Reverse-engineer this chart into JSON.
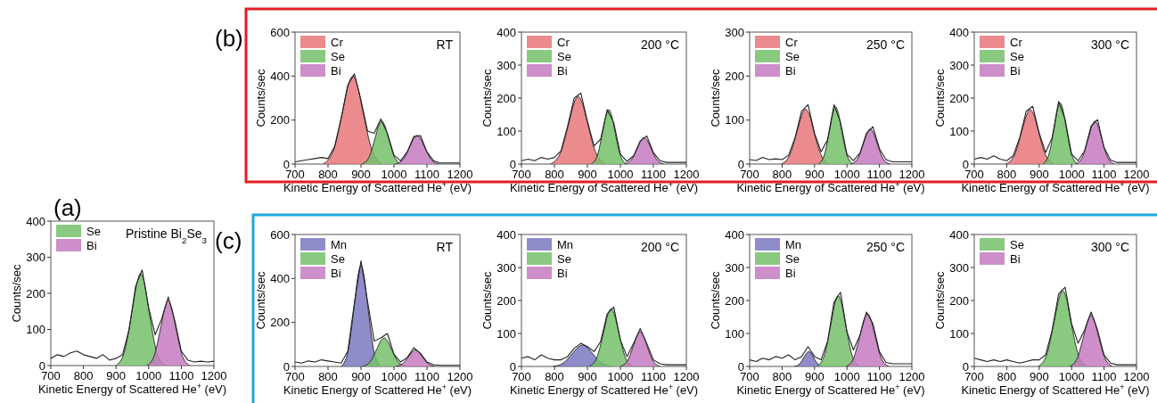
{
  "chart_data": [
    {
      "type": "area",
      "title": "Pristine Bi$_{2}$Se$_{3}$",
      "xlabel": "Kinetic Energy of Scattered He$^{+}$ (eV)",
      "ylabel": "Counts/sec",
      "annotations": [
        "(a)"
      ],
      "xlim": [
        700,
        1200
      ],
      "xticks": [
        700,
        800,
        900,
        1000,
        1100,
        1200
      ],
      "ylim": [
        0,
        400
      ],
      "yticks": [
        0,
        100,
        200,
        300,
        400
      ],
      "legend": "top left",
      "x": [
        700,
        720,
        740,
        760,
        780,
        800,
        820,
        840,
        860,
        880,
        900,
        920,
        940,
        960,
        980,
        1000,
        1020,
        1040,
        1060,
        1080,
        1100,
        1120,
        1140,
        1160,
        1180,
        1200
      ],
      "series": [
        {
          "name": "Se",
          "color": "#74bf6a",
          "x": [
            900,
            925,
            950,
            963,
            975,
            988,
            1000,
            1025,
            1050
          ],
          "values": [
            0,
            36,
            156,
            224,
            255,
            224,
            156,
            36,
            0
          ]
        },
        {
          "name": "Bi",
          "color": "#c47ac0",
          "x": [
            994,
            1016,
            1038,
            1049,
            1060,
            1071,
            1082,
            1104,
            1126
          ],
          "values": [
            0,
            25,
            110,
            158,
            180,
            158,
            110,
            25,
            0
          ]
        },
        {
          "type": "line",
          "color": "#222222",
          "values": [
            20,
            30,
            25,
            35,
            40,
            30,
            25,
            20,
            30,
            15,
            20,
            30,
            100,
            220,
            265,
            160,
            85,
            130,
            190,
            125,
            40,
            15,
            10,
            12,
            10,
            12
          ]
        }
      ]
    },
    {
      "type": "area",
      "title": "RT",
      "xlabel": "Kinetic Energy of Scattered He$^{+}$ (eV)",
      "ylabel": "Counts/sec",
      "annotations": [
        "(b)"
      ],
      "xlim": [
        700,
        1200
      ],
      "xticks": [
        700,
        800,
        900,
        1000,
        1100,
        1200
      ],
      "ylim": [
        0,
        600
      ],
      "yticks": [
        0,
        200,
        400,
        600
      ],
      "legend": "top left",
      "x": [
        700,
        720,
        740,
        760,
        780,
        800,
        820,
        840,
        860,
        880,
        900,
        920,
        940,
        960,
        980,
        1000,
        1020,
        1040,
        1060,
        1080,
        1100,
        1120,
        1140,
        1160,
        1180,
        1200
      ],
      "series": [
        {
          "name": "Cr",
          "color": "#e8777a",
          "x": [
            785,
            815,
            845,
            860,
            875,
            890,
            905,
            935,
            965
          ],
          "values": [
            0,
            56,
            244,
            352,
            400,
            352,
            244,
            56,
            0
          ]
        },
        {
          "name": "Se",
          "color": "#74bf6a",
          "x": [
            903,
            923,
            943,
            953,
            963,
            973,
            983,
            1003,
            1023
          ],
          "values": [
            0,
            27,
            119,
            172,
            195,
            172,
            119,
            27,
            0
          ]
        },
        {
          "name": "Bi",
          "color": "#c47ac0",
          "x": [
            1004,
            1026,
            1048,
            1059,
            1070,
            1081,
            1092,
            1114,
            1136
          ],
          "values": [
            0,
            18,
            79,
            114,
            130,
            114,
            79,
            18,
            0
          ]
        },
        {
          "type": "line",
          "color": "#222222",
          "values": [
            10,
            15,
            20,
            25,
            30,
            25,
            80,
            210,
            360,
            410,
            290,
            150,
            140,
            205,
            140,
            40,
            15,
            55,
            125,
            130,
            55,
            15,
            5,
            5,
            5,
            5
          ]
        }
      ]
    },
    {
      "type": "area",
      "title": "200 °C",
      "xlabel": "Kinetic Energy of Scattered He$^{+}$ (eV)",
      "ylabel": "Counts/sec",
      "xlim": [
        700,
        1200
      ],
      "xticks": [
        700,
        800,
        900,
        1000,
        1100,
        1200
      ],
      "ylim": [
        0,
        400
      ],
      "yticks": [
        0,
        100,
        200,
        300,
        400
      ],
      "legend": "top left",
      "x": [
        700,
        720,
        740,
        760,
        780,
        800,
        820,
        840,
        860,
        880,
        900,
        920,
        940,
        960,
        980,
        1000,
        1020,
        1040,
        1060,
        1080,
        1100,
        1120,
        1140,
        1160,
        1180,
        1200
      ],
      "series": [
        {
          "name": "Cr",
          "color": "#e8777a",
          "x": [
            788,
            816,
            844,
            858,
            872,
            886,
            900,
            928,
            956
          ],
          "values": [
            0,
            29,
            125,
            180,
            205,
            180,
            125,
            29,
            0
          ]
        },
        {
          "name": "Se",
          "color": "#74bf6a",
          "x": [
            911,
            929,
            947,
            956,
            965,
            974,
            983,
            1001,
            1019
          ],
          "values": [
            0,
            23,
            101,
            145,
            165,
            145,
            101,
            23,
            0
          ]
        },
        {
          "name": "Bi",
          "color": "#c47ac0",
          "x": [
            1012,
            1032,
            1052,
            1062,
            1072,
            1082,
            1092,
            1112,
            1132
          ],
          "values": [
            0,
            11,
            49,
            70,
            80,
            70,
            49,
            11,
            0
          ]
        },
        {
          "type": "line",
          "color": "#222222",
          "values": [
            10,
            15,
            10,
            20,
            15,
            20,
            40,
            115,
            200,
            215,
            130,
            55,
            75,
            165,
            125,
            30,
            8,
            25,
            70,
            85,
            35,
            10,
            5,
            5,
            5,
            5
          ]
        }
      ]
    },
    {
      "type": "area",
      "title": "250 °C",
      "xlabel": "Kinetic Energy of Scattered He$^{+}$ (eV)",
      "ylabel": "Counts/sec",
      "xlim": [
        700,
        1200
      ],
      "xticks": [
        700,
        800,
        900,
        1000,
        1100,
        1200
      ],
      "ylim": [
        0,
        300
      ],
      "yticks": [
        0,
        100,
        200,
        300
      ],
      "legend": "top left",
      "x": [
        700,
        720,
        740,
        760,
        780,
        800,
        820,
        840,
        860,
        880,
        900,
        920,
        940,
        960,
        980,
        1000,
        1020,
        1040,
        1060,
        1080,
        1100,
        1120,
        1140,
        1160,
        1180,
        1200
      ],
      "series": [
        {
          "name": "Cr",
          "color": "#e8777a",
          "x": [
            797,
            822,
            847,
            860,
            872,
            885,
            897,
            922,
            947
          ],
          "values": [
            0,
            18,
            76,
            110,
            125,
            110,
            76,
            18,
            0
          ]
        },
        {
          "name": "Se",
          "color": "#74bf6a",
          "x": [
            911,
            929,
            947,
            956,
            965,
            974,
            983,
            1001,
            1019
          ],
          "values": [
            0,
            18,
            79,
            114,
            130,
            114,
            79,
            18,
            0
          ]
        },
        {
          "name": "Bi",
          "color": "#c47ac0",
          "x": [
            1012,
            1032,
            1052,
            1062,
            1072,
            1082,
            1092,
            1112,
            1132
          ],
          "values": [
            0,
            11,
            49,
            70,
            80,
            70,
            49,
            11,
            0
          ]
        },
        {
          "type": "line",
          "color": "#222222",
          "values": [
            10,
            8,
            15,
            10,
            12,
            10,
            20,
            60,
            120,
            135,
            70,
            28,
            55,
            135,
            95,
            22,
            8,
            25,
            70,
            85,
            35,
            10,
            5,
            5,
            5,
            5
          ]
        }
      ]
    },
    {
      "type": "area",
      "title": "300 °C",
      "xlabel": "Kinetic Energy of Scattered He$^{+}$ (eV)",
      "ylabel": "Counts/sec",
      "xlim": [
        700,
        1200
      ],
      "xticks": [
        700,
        800,
        900,
        1000,
        1100,
        1200
      ],
      "ylim": [
        0,
        400
      ],
      "yticks": [
        0,
        100,
        200,
        300,
        400
      ],
      "legend": "top left",
      "x": [
        700,
        720,
        740,
        760,
        780,
        800,
        820,
        840,
        860,
        880,
        900,
        920,
        940,
        960,
        980,
        1000,
        1020,
        1040,
        1060,
        1080,
        1100,
        1120,
        1140,
        1160,
        1180,
        1200
      ],
      "series": [
        {
          "name": "Cr",
          "color": "#e8777a",
          "x": [
            797,
            822,
            847,
            860,
            872,
            885,
            897,
            922,
            947
          ],
          "values": [
            0,
            23,
            101,
            145,
            165,
            145,
            101,
            23,
            0
          ]
        },
        {
          "name": "Se",
          "color": "#74bf6a",
          "x": [
            911,
            929,
            947,
            956,
            965,
            974,
            983,
            1001,
            1019
          ],
          "values": [
            0,
            26,
            113,
            163,
            185,
            163,
            113,
            26,
            0
          ]
        },
        {
          "name": "Bi",
          "color": "#c47ac0",
          "x": [
            1012,
            1032,
            1052,
            1062,
            1072,
            1082,
            1092,
            1112,
            1132
          ],
          "values": [
            0,
            18,
            79,
            114,
            130,
            114,
            79,
            18,
            0
          ]
        },
        {
          "type": "line",
          "color": "#222222",
          "values": [
            15,
            20,
            15,
            25,
            15,
            10,
            25,
            80,
            160,
            175,
            95,
            35,
            80,
            190,
            135,
            30,
            10,
            40,
            115,
            135,
            50,
            12,
            5,
            5,
            5,
            5
          ]
        }
      ]
    },
    {
      "type": "area",
      "title": "RT",
      "xlabel": "Kinetic Energy of Scattered He$^{+}$ (eV)",
      "ylabel": "Counts/sec",
      "annotations": [
        "(c)"
      ],
      "xlim": [
        700,
        1200
      ],
      "xticks": [
        700,
        800,
        900,
        1000,
        1100,
        1200
      ],
      "ylim": [
        0,
        600
      ],
      "yticks": [
        0,
        200,
        400,
        600
      ],
      "legend": "top left",
      "x": [
        700,
        720,
        740,
        760,
        780,
        800,
        820,
        840,
        860,
        880,
        900,
        920,
        940,
        960,
        980,
        1000,
        1020,
        1040,
        1060,
        1080,
        1100,
        1120,
        1140,
        1160,
        1180,
        1200
      ],
      "series": [
        {
          "name": "Mn",
          "color": "#7a78c0",
          "x": [
            840,
            860,
            880,
            890,
            900,
            910,
            920,
            940,
            960
          ],
          "values": [
            0,
            64,
            281,
            405,
            460,
            405,
            281,
            64,
            0
          ]
        },
        {
          "name": "Se",
          "color": "#74bf6a",
          "x": [
            904,
            926,
            948,
            959,
            970,
            981,
            992,
            1014,
            1036
          ],
          "values": [
            0,
            18,
            79,
            114,
            130,
            114,
            79,
            18,
            0
          ]
        },
        {
          "name": "Bi",
          "color": "#c47ac0",
          "x": [
            1005,
            1025,
            1045,
            1055,
            1065,
            1075,
            1085,
            1105,
            1125
          ],
          "values": [
            0,
            11,
            46,
            66,
            75,
            66,
            46,
            11,
            0
          ]
        },
        {
          "type": "line",
          "color": "#222222",
          "values": [
            20,
            15,
            25,
            20,
            30,
            25,
            20,
            15,
            70,
            290,
            480,
            295,
            115,
            130,
            150,
            55,
            20,
            40,
            85,
            60,
            20,
            8,
            5,
            5,
            5,
            5
          ]
        }
      ]
    },
    {
      "type": "area",
      "title": "200 °C",
      "xlabel": "Kinetic Energy of Scattered He$^{+}$ (eV)",
      "ylabel": "Counts/sec",
      "xlim": [
        700,
        1200
      ],
      "xticks": [
        700,
        800,
        900,
        1000,
        1100,
        1200
      ],
      "ylim": [
        0,
        400
      ],
      "yticks": [
        0,
        100,
        200,
        300,
        400
      ],
      "legend": "top left",
      "x": [
        700,
        720,
        740,
        760,
        780,
        800,
        820,
        840,
        860,
        880,
        900,
        920,
        940,
        960,
        980,
        1000,
        1020,
        1040,
        1060,
        1080,
        1100,
        1120,
        1140,
        1160,
        1180,
        1200
      ],
      "series": [
        {
          "name": "Mn",
          "color": "#7a78c0",
          "x": [
            795,
            825,
            855,
            870,
            885,
            900,
            915,
            945,
            975
          ],
          "values": [
            0,
            9,
            40,
            57,
            65,
            57,
            40,
            9,
            0
          ]
        },
        {
          "name": "Se",
          "color": "#74bf6a",
          "x": [
            906,
            928,
            950,
            961,
            972,
            983,
            994,
            1016,
            1038
          ],
          "values": [
            0,
            25,
            107,
            154,
            175,
            154,
            107,
            25,
            0
          ]
        },
        {
          "name": "Bi",
          "color": "#c47ac0",
          "x": [
            1000,
            1020,
            1040,
            1050,
            1060,
            1070,
            1080,
            1100,
            1120
          ],
          "values": [
            0,
            15,
            64,
            92,
            105,
            92,
            64,
            15,
            0
          ]
        },
        {
          "type": "line",
          "color": "#222222",
          "values": [
            25,
            30,
            20,
            35,
            25,
            20,
            20,
            30,
            55,
            70,
            60,
            45,
            75,
            160,
            180,
            80,
            30,
            70,
            115,
            70,
            20,
            8,
            5,
            5,
            5,
            5
          ]
        }
      ]
    },
    {
      "type": "area",
      "title": "250 °C",
      "xlabel": "Kinetic Energy of Scattered He$^{+}$ (eV)",
      "ylabel": "Counts/sec",
      "xlim": [
        700,
        1200
      ],
      "xticks": [
        700,
        800,
        900,
        1000,
        1100,
        1200
      ],
      "ylim": [
        0,
        400
      ],
      "yticks": [
        0,
        100,
        200,
        300,
        400
      ],
      "legend": "top left",
      "x": [
        700,
        720,
        740,
        760,
        780,
        800,
        820,
        840,
        860,
        880,
        900,
        920,
        940,
        960,
        980,
        1000,
        1020,
        1040,
        1060,
        1080,
        1100,
        1120,
        1140,
        1160,
        1180,
        1200
      ],
      "series": [
        {
          "name": "Mn",
          "color": "#7a78c0",
          "x": [
            837,
            852,
            867,
            875,
            882,
            890,
            897,
            912,
            927
          ],
          "values": [
            0,
            6,
            27,
            40,
            45,
            40,
            27,
            6,
            0
          ]
        },
        {
          "name": "Se",
          "color": "#74bf6a",
          "x": [
            907,
            929,
            951,
            962,
            973,
            984,
            995,
            1017,
            1039
          ],
          "values": [
            0,
            30,
            131,
            189,
            215,
            189,
            131,
            30,
            0
          ]
        },
        {
          "name": "Bi",
          "color": "#c47ac0",
          "x": [
            997,
            1019,
            1041,
            1052,
            1063,
            1074,
            1085,
            1107,
            1129
          ],
          "values": [
            0,
            22,
            98,
            141,
            160,
            141,
            98,
            22,
            0
          ]
        },
        {
          "type": "line",
          "color": "#222222",
          "values": [
            20,
            15,
            25,
            20,
            30,
            25,
            35,
            20,
            30,
            60,
            30,
            20,
            75,
            195,
            225,
            105,
            50,
            95,
            165,
            130,
            45,
            12,
            8,
            8,
            8,
            8
          ]
        }
      ]
    },
    {
      "type": "area",
      "title": "300 °C",
      "xlabel": "Kinetic Energy of Scattered He$^{+}$ (eV)",
      "ylabel": "Counts/sec",
      "xlim": [
        700,
        1200
      ],
      "xticks": [
        700,
        800,
        900,
        1000,
        1100,
        1200
      ],
      "ylim": [
        0,
        400
      ],
      "yticks": [
        0,
        100,
        200,
        300,
        400
      ],
      "legend": "top left",
      "x": [
        700,
        720,
        740,
        760,
        780,
        800,
        820,
        840,
        860,
        880,
        900,
        920,
        940,
        960,
        980,
        1000,
        1020,
        1040,
        1060,
        1080,
        1100,
        1120,
        1140,
        1160,
        1180,
        1200
      ],
      "series": [
        {
          "name": "Se",
          "color": "#74bf6a",
          "x": [
            897,
            922,
            947,
            960,
            972,
            985,
            997,
            1022,
            1047
          ],
          "values": [
            0,
            32,
            140,
            202,
            230,
            202,
            140,
            32,
            0
          ]
        },
        {
          "name": "Bi",
          "color": "#c47ac0",
          "x": [
            994,
            1016,
            1038,
            1049,
            1060,
            1071,
            1082,
            1104,
            1126
          ],
          "values": [
            0,
            22,
            95,
            136,
            155,
            136,
            95,
            22,
            0
          ]
        },
        {
          "type": "line",
          "color": "#222222",
          "values": [
            25,
            20,
            15,
            20,
            15,
            20,
            15,
            10,
            15,
            20,
            20,
            35,
            110,
            220,
            240,
            130,
            70,
            110,
            165,
            110,
            35,
            10,
            5,
            5,
            5,
            5
          ]
        }
      ]
    }
  ]
}
